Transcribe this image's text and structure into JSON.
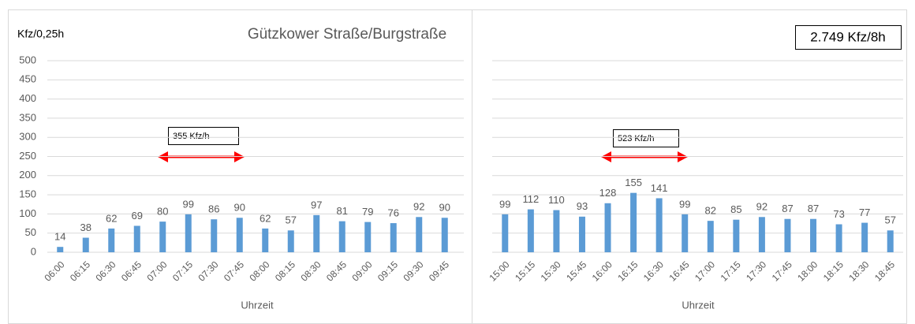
{
  "chart_data": [
    {
      "type": "bar",
      "title": "Gützkower Straße/Burgstraße",
      "y_label": "Kfz/0,25h",
      "x_label": "Uhrzeit",
      "annotation": "355 Kfz/h",
      "categories": [
        "06:00",
        "06:15",
        "06:30",
        "06:45",
        "07:00",
        "07:15",
        "07:30",
        "07:45",
        "08:00",
        "08:15",
        "08:30",
        "08:45",
        "09:00",
        "09:15",
        "09:30",
        "09:45"
      ],
      "values": [
        14,
        38,
        62,
        69,
        80,
        99,
        86,
        90,
        62,
        57,
        97,
        81,
        79,
        76,
        92,
        90
      ],
      "color": "#5b9bd5",
      "ylim": [
        0,
        500
      ],
      "yticks": [
        0,
        50,
        100,
        150,
        200,
        250,
        300,
        350,
        400,
        450,
        500
      ],
      "grid": true
    },
    {
      "type": "bar",
      "x_label": "Uhrzeit",
      "annotation": "523 Kfz/h",
      "total": "2.749 Kfz/8h",
      "categories": [
        "15:00",
        "15:15",
        "15:30",
        "15:45",
        "16:00",
        "16:15",
        "16:30",
        "16:45",
        "17:00",
        "17:15",
        "17:30",
        "17:45",
        "18:00",
        "18:15",
        "18:30",
        "18:45"
      ],
      "values": [
        99,
        112,
        110,
        93,
        128,
        155,
        141,
        99,
        82,
        85,
        92,
        87,
        87,
        73,
        77,
        57
      ],
      "color": "#5b9bd5",
      "ylim": [
        0,
        500
      ],
      "yticks": [
        0,
        50,
        100,
        150,
        200,
        250,
        300,
        350,
        400,
        450,
        500
      ],
      "grid": true
    }
  ]
}
